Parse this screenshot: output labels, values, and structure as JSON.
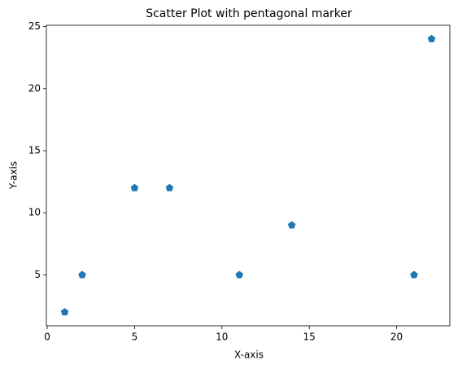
{
  "chart_data": {
    "type": "scatter",
    "title": "Scatter Plot with pentagonal marker",
    "x_label": "X-axis",
    "y_label": "Y-axis",
    "x": [
      1,
      2,
      5,
      7,
      11,
      14,
      21,
      22
    ],
    "values": [
      2,
      5,
      12,
      12,
      5,
      9,
      5,
      24
    ],
    "color": "#1f77b4",
    "marker": "pentagon",
    "xlim": [
      -0.05,
      23.05
    ],
    "xticks": [
      0,
      5,
      10,
      15,
      20
    ],
    "ylim": [
      0.9,
      25.1
    ],
    "yticks": [
      5,
      10,
      15,
      20,
      25
    ],
    "grid": false
  }
}
